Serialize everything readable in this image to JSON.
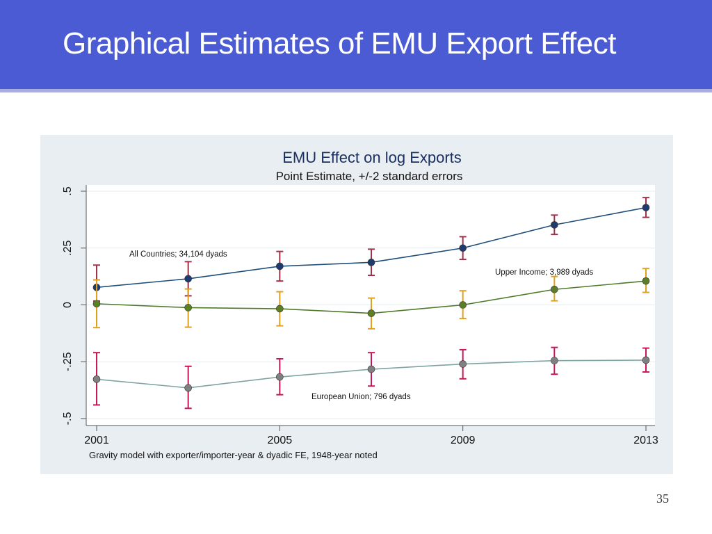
{
  "slide": {
    "title": "Graphical Estimates of EMU Export Effect",
    "page_number": "35",
    "header_color": "#4a5bd4"
  },
  "chart_data": {
    "type": "line",
    "title": "EMU Effect on log Exports",
    "subtitle": "Point Estimate, +/-2 standard errors",
    "xlabel": "Gravity model with exporter/importer-year & dyadic FE, 1948-year noted",
    "ylabel": "",
    "x": [
      2001,
      2003,
      2005,
      2007,
      2009,
      2011,
      2013
    ],
    "x_ticks": [
      2001,
      2005,
      2009,
      2013
    ],
    "x_tick_labels": [
      "2001",
      "2005",
      "2009",
      "2013"
    ],
    "xlim": [
      2001,
      2013
    ],
    "y_ticks": [
      -0.5,
      -0.25,
      0,
      0.25,
      0.5
    ],
    "y_tick_labels": [
      "-.5",
      "-.25",
      "0",
      ".25",
      ".5"
    ],
    "ylim": [
      -0.5,
      0.5
    ],
    "grid": true,
    "series": [
      {
        "name": "All Countries; 34,104 dyads",
        "color": "#1f4e79",
        "marker_color": "#1f3b6e",
        "errorbar_color": "#a0324a",
        "values": [
          0.077,
          0.115,
          0.17,
          0.187,
          0.25,
          0.352,
          0.428
        ],
        "lower": [
          0.017,
          0.04,
          0.105,
          0.13,
          0.2,
          0.31,
          0.385
        ],
        "upper": [
          0.175,
          0.19,
          0.235,
          0.245,
          0.3,
          0.395,
          0.472
        ]
      },
      {
        "name": "Upper Income; 3,989 dyads",
        "color": "#4f7a28",
        "marker_color": "#5c7f26",
        "errorbar_color": "#e0a020",
        "values": [
          0.005,
          -0.012,
          -0.017,
          -0.037,
          0.0,
          0.068,
          0.105
        ],
        "lower": [
          -0.1,
          -0.098,
          -0.092,
          -0.105,
          -0.06,
          0.018,
          0.055
        ],
        "upper": [
          0.11,
          0.07,
          0.058,
          0.03,
          0.062,
          0.125,
          0.16
        ]
      },
      {
        "name": "European Union; 796 dyads",
        "color": "#7fa3a0",
        "marker_color": "#808080",
        "errorbar_color": "#c8185a",
        "values": [
          -0.327,
          -0.365,
          -0.317,
          -0.283,
          -0.26,
          -0.245,
          -0.243
        ],
        "lower": [
          -0.44,
          -0.455,
          -0.395,
          -0.357,
          -0.325,
          -0.305,
          -0.295
        ],
        "upper": [
          -0.21,
          -0.27,
          -0.237,
          -0.21,
          -0.197,
          -0.187,
          -0.19
        ]
      }
    ]
  }
}
